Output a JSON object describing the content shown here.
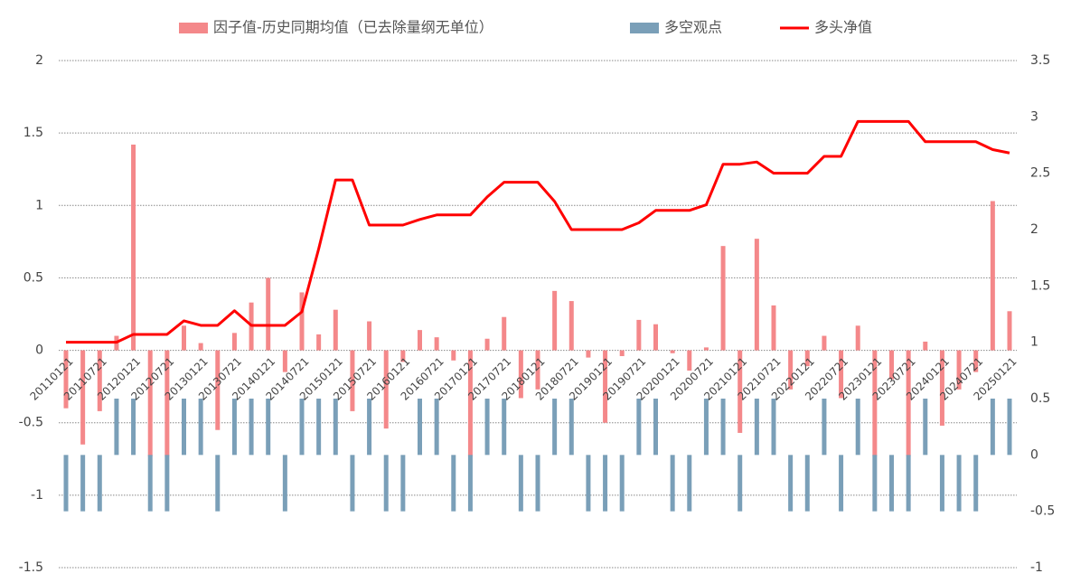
{
  "chart_data": {
    "type": "combo",
    "categories": [
      "20110121",
      null,
      "20110721",
      null,
      "20120121",
      null,
      "20120721",
      null,
      "20130121",
      null,
      "20130721",
      null,
      "20140121",
      null,
      "20140721",
      null,
      "20150121",
      null,
      "20150721",
      null,
      "20160121",
      null,
      "20160721",
      null,
      "20170121",
      null,
      "20170721",
      null,
      "20180121",
      null,
      "20180721",
      null,
      "20190121",
      null,
      "20190721",
      null,
      "20200121",
      null,
      "20200721",
      null,
      "20210121",
      null,
      "20210721",
      null,
      "20220121",
      null,
      "20220721",
      null,
      "20230121",
      null,
      "20230721",
      null,
      "20240121",
      null,
      "20240721",
      null,
      "20250121"
    ],
    "series": [
      {
        "name": "因子值-历史同期均值（已去除量纲无单位）",
        "kind": "bar",
        "color": "#f4888a",
        "values": [
          -0.4,
          -0.65,
          -0.42,
          0.1,
          1.42,
          -0.73,
          -0.73,
          0.17,
          0.05,
          -0.55,
          0.12,
          0.33,
          0.5,
          -0.15,
          0.4,
          0.11,
          0.28,
          -0.42,
          0.2,
          -0.54,
          -0.08,
          0.14,
          0.09,
          -0.07,
          -0.73,
          0.08,
          0.23,
          -0.33,
          -0.27,
          0.41,
          0.34,
          -0.05,
          -0.5,
          -0.04,
          0.21,
          0.18,
          -0.02,
          -0.14,
          0.02,
          0.72,
          -0.57,
          0.77,
          0.31,
          -0.27,
          -0.11,
          0.1,
          -0.33,
          0.17,
          -0.73,
          -0.2,
          -0.73,
          0.06,
          -0.52,
          -0.27,
          -0.15,
          1.03,
          0.27
        ]
      },
      {
        "name": "多空观点",
        "kind": "bar",
        "axis": "y2",
        "color": "#7a9fb8",
        "values": [
          -0.5,
          -0.5,
          -0.5,
          0.5,
          0.5,
          -0.5,
          -0.5,
          0.5,
          0.5,
          -0.5,
          0.5,
          0.5,
          0.5,
          -0.5,
          0.5,
          0.5,
          0.5,
          -0.5,
          0.5,
          -0.5,
          -0.5,
          0.5,
          0.5,
          -0.5,
          -0.5,
          0.5,
          0.5,
          -0.5,
          -0.5,
          0.5,
          0.5,
          -0.5,
          -0.5,
          -0.5,
          0.5,
          0.5,
          -0.5,
          -0.5,
          0.5,
          0.5,
          -0.5,
          0.5,
          0.5,
          -0.5,
          -0.5,
          0.5,
          -0.5,
          0.5,
          -0.5,
          -0.5,
          -0.5,
          0.5,
          -0.5,
          -0.5,
          -0.5,
          0.5,
          0.5
        ]
      },
      {
        "name": "多头净值",
        "kind": "line",
        "axis": "y2",
        "color": "#ff0000",
        "values": [
          1.0,
          1.0,
          1.0,
          1.0,
          1.07,
          1.07,
          1.07,
          1.19,
          1.15,
          1.15,
          1.28,
          1.15,
          1.15,
          1.15,
          1.27,
          1.83,
          2.44,
          2.44,
          2.04,
          2.04,
          2.04,
          2.09,
          2.13,
          2.13,
          2.13,
          2.29,
          2.42,
          2.42,
          2.42,
          2.25,
          2.0,
          2.0,
          2.0,
          2.0,
          2.06,
          2.17,
          2.17,
          2.17,
          2.22,
          2.58,
          2.58,
          2.6,
          2.5,
          2.5,
          2.5,
          2.65,
          2.65,
          2.96,
          2.96,
          2.96,
          2.96,
          2.78,
          2.78,
          2.78,
          2.78,
          2.71,
          2.68
        ]
      }
    ],
    "ylim": [
      -1.5,
      2
    ],
    "yticks": [
      -1.5,
      -1,
      -0.5,
      0,
      0.5,
      1,
      1.5,
      2
    ],
    "y2lim": [
      -1,
      3.5
    ],
    "y2ticks": [
      -1,
      -0.5,
      0,
      0.5,
      1,
      1.5,
      2,
      2.5,
      3,
      3.5
    ],
    "grid": true,
    "legend": "top"
  }
}
